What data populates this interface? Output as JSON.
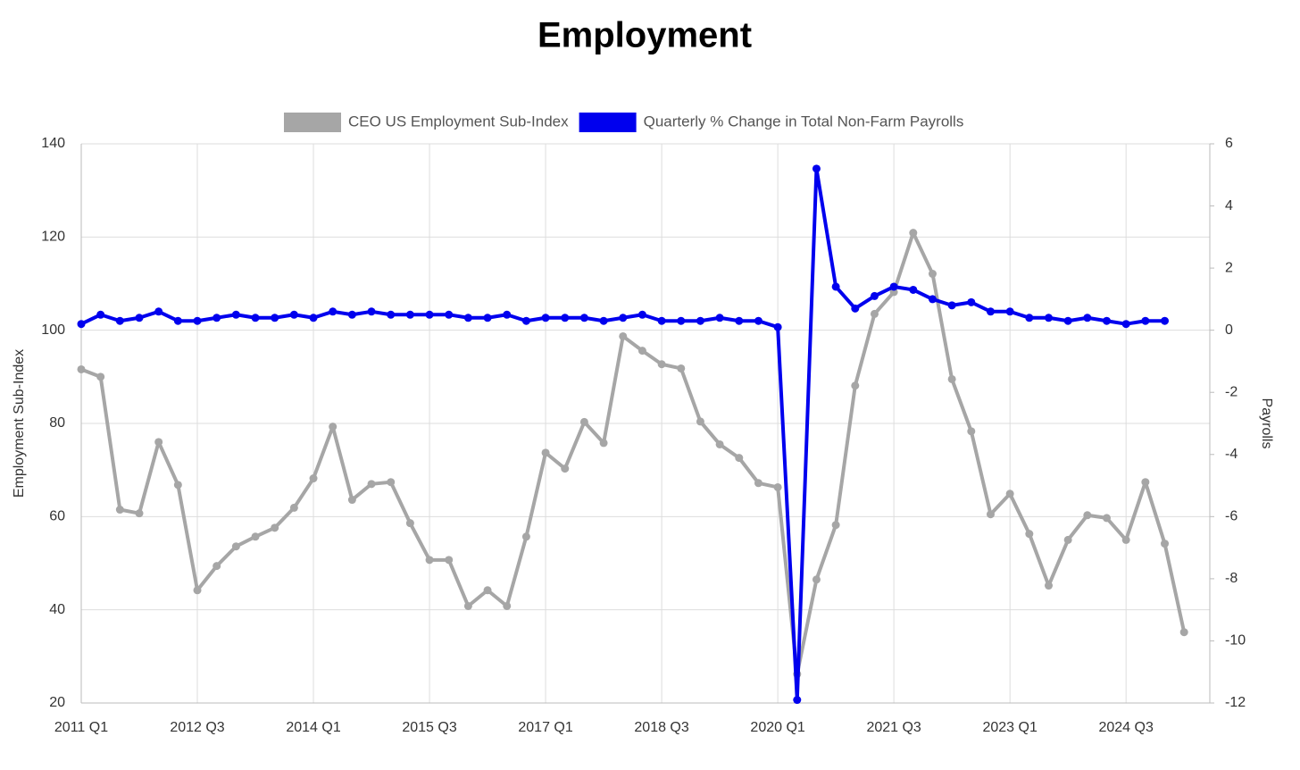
{
  "chart_data": {
    "type": "line",
    "title": "Employment",
    "y_label": "Employment Sub-Index",
    "y2_label": "Payrolls",
    "categories": [
      "2011 Q1",
      null,
      null,
      null,
      null,
      null,
      "2012 Q3",
      null,
      null,
      null,
      null,
      null,
      "2014 Q1",
      null,
      null,
      null,
      null,
      null,
      "2015 Q3",
      null,
      null,
      null,
      null,
      null,
      "2017 Q1",
      null,
      null,
      null,
      null,
      null,
      "2018 Q3",
      null,
      null,
      null,
      null,
      null,
      "2020 Q1",
      null,
      null,
      null,
      null,
      null,
      "2021 Q3",
      null,
      null,
      null,
      null,
      null,
      "2023 Q1",
      null,
      null,
      null,
      null,
      null,
      "2024 Q3",
      null,
      null,
      null
    ],
    "series": [
      {
        "name": "CEO US Employment Sub-Index",
        "color": "#a6a6a6",
        "axis": "y",
        "values": [
          91.6,
          90,
          61.5,
          60.7,
          76,
          66.8,
          44.2,
          49.4,
          53.6,
          55.7,
          57.6,
          61.9,
          68.2,
          79.3,
          63.6,
          67,
          67.4,
          58.6,
          50.7,
          50.7,
          40.8,
          44.2,
          40.8,
          55.7,
          73.7,
          70.3,
          80.3,
          75.8,
          98.7,
          95.6,
          92.7,
          91.8,
          80.4,
          75.5,
          72.6,
          67.2,
          66.3,
          26.2,
          46.5,
          58.2,
          88.1,
          103.5,
          108.2,
          120.9,
          112.1,
          89.5,
          78.3,
          60.5,
          64.9,
          56.3,
          45.2,
          55,
          60.3,
          59.7,
          55,
          67.4,
          54.2,
          35.2
        ]
      },
      {
        "name": "Quarterly % Change in Total Non-Farm Payrolls",
        "color": "#0000ee",
        "axis": "y2",
        "values": [
          0.2,
          0.5,
          0.3,
          0.4,
          0.6,
          0.3,
          0.3,
          0.4,
          0.5,
          0.4,
          0.4,
          0.5,
          0.4,
          0.6,
          0.5,
          0.6,
          0.5,
          0.5,
          0.5,
          0.5,
          0.4,
          0.4,
          0.5,
          0.3,
          0.4,
          0.4,
          0.4,
          0.3,
          0.4,
          0.5,
          0.3,
          0.3,
          0.3,
          0.4,
          0.3,
          0.3,
          0.1,
          -11.9,
          5.2,
          1.4,
          0.7,
          1.1,
          1.4,
          1.3,
          1.0,
          0.8,
          0.9,
          0.6,
          0.6,
          0.4,
          0.4,
          0.3,
          0.4,
          0.3,
          0.2,
          0.3,
          0.3,
          null
        ]
      }
    ],
    "ylim": [
      20,
      140
    ],
    "yticks": [
      20,
      40,
      60,
      80,
      100,
      120,
      140
    ],
    "y2lim": [
      -12,
      6
    ],
    "y2ticks": [
      -12,
      -10,
      -8,
      -6,
      -4,
      -2,
      0,
      2,
      4,
      6
    ],
    "grid": true,
    "legend": "top"
  }
}
